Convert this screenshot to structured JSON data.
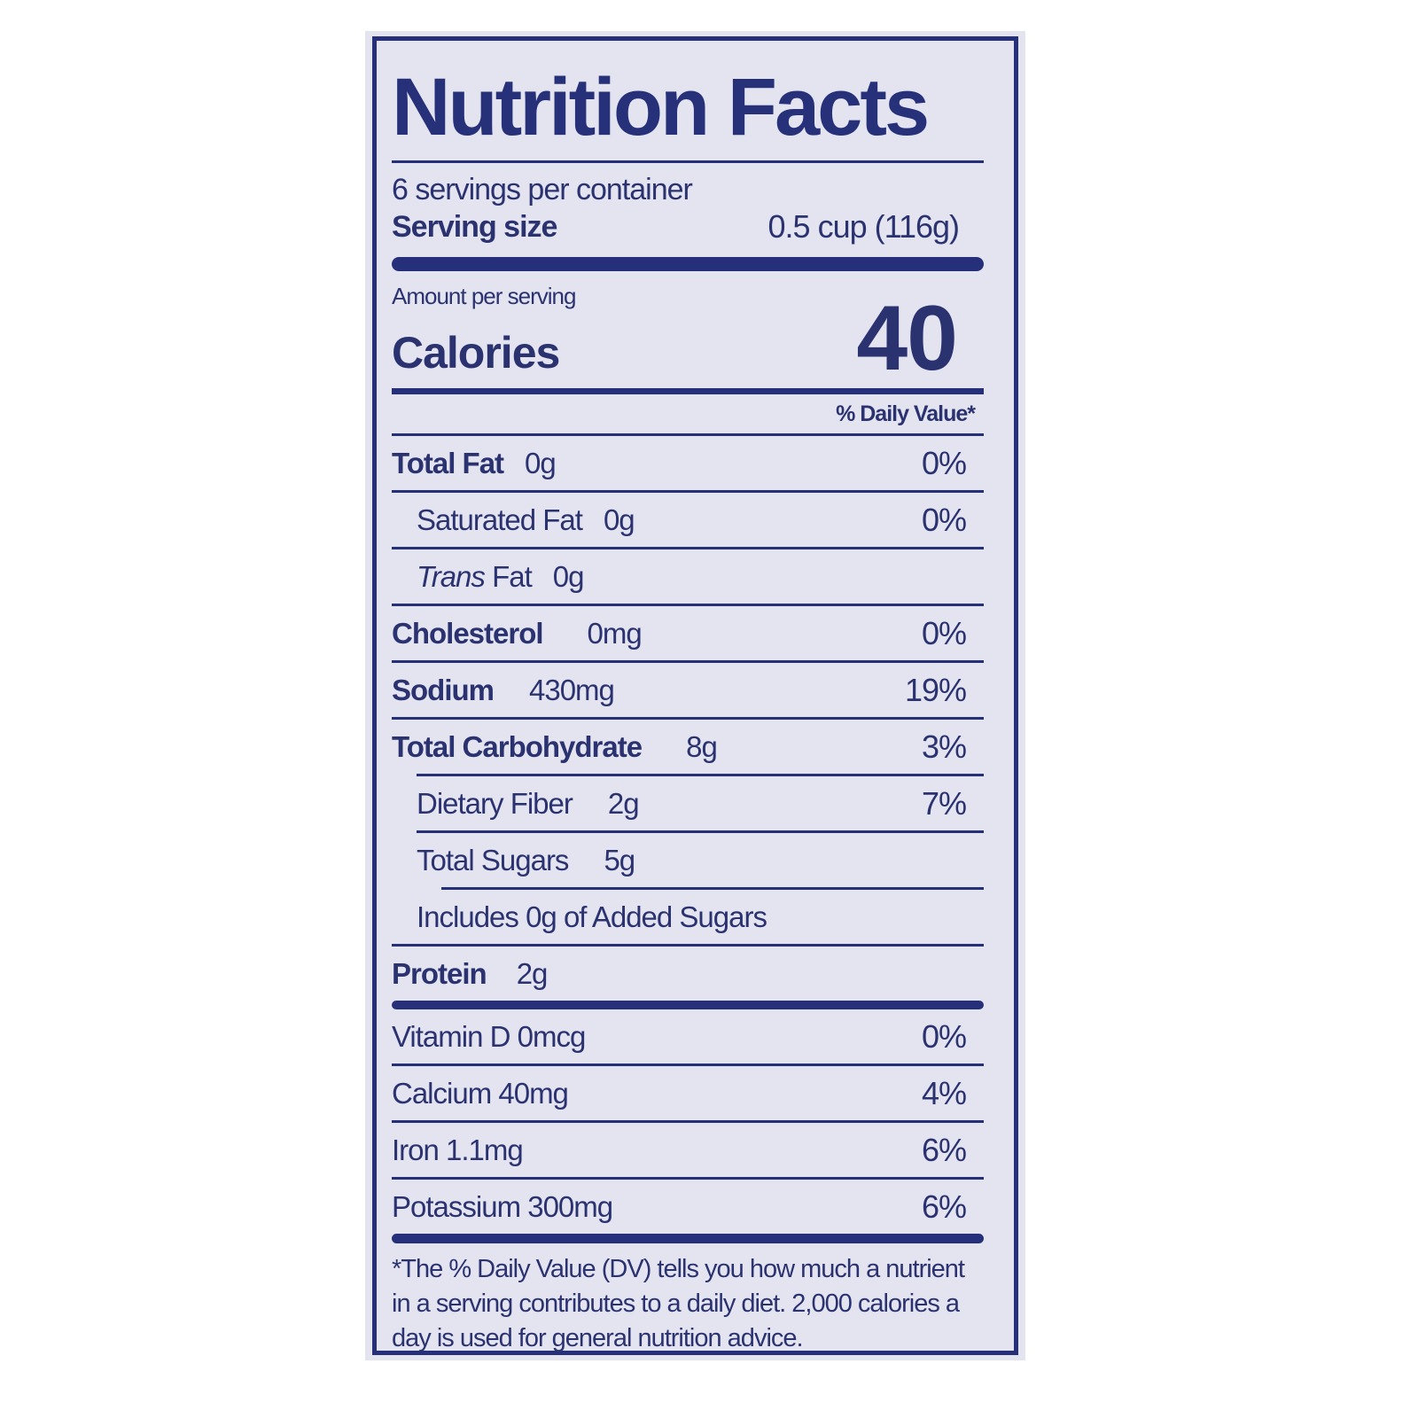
{
  "title": "Nutrition Facts",
  "servings_per_container": "6 servings per container",
  "serving_size": {
    "label": "Serving size",
    "value": "0.5 cup  (116g)"
  },
  "amount_per_serving": "Amount per serving",
  "calories": {
    "label": "Calories",
    "value": "40"
  },
  "daily_value_header": "% Daily Value*",
  "nutrients": [
    {
      "name": "Total Fat",
      "amount": "0g",
      "dv": "0%"
    },
    {
      "name": "Saturated Fat",
      "amount": "0g",
      "dv": "0%"
    },
    {
      "name_italic": "Trans",
      "name": " Fat",
      "amount": "0g",
      "dv": ""
    },
    {
      "name": "Cholesterol",
      "amount": "0mg",
      "dv": "0%"
    },
    {
      "name": "Sodium",
      "amount": "430mg",
      "dv": "19%"
    },
    {
      "name": "Total Carbohydrate",
      "amount": "8g",
      "dv": "3%"
    },
    {
      "name": "Dietary Fiber",
      "amount": "2g",
      "dv": "7%"
    },
    {
      "name": "Total Sugars",
      "amount": "5g",
      "dv": ""
    },
    {
      "name": "Includes 0g of Added Sugars",
      "dv": ""
    },
    {
      "name": "Protein",
      "amount": "2g",
      "dv": ""
    }
  ],
  "vitamins": [
    {
      "label": "Vitamin D 0mcg",
      "dv": "0%"
    },
    {
      "label": "Calcium 40mg",
      "dv": "4%"
    },
    {
      "label": "Iron 1.1mg",
      "dv": "6%"
    },
    {
      "label": "Potassium 300mg",
      "dv": "6%"
    }
  ],
  "footnote": "*The % Daily Value (DV) tells you how much a nutrient in a serving contributes to a daily diet. 2,000 calories a day is used for general nutrition advice.",
  "colors": {
    "ink": "#26307a",
    "background": "#e4e4f1"
  }
}
